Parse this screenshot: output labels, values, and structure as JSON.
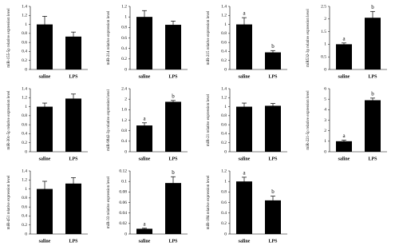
{
  "chart_data": [
    {
      "type": "bar",
      "y_label": "miR-155-5p relative expression level",
      "categories": [
        "saline",
        "LPS"
      ],
      "values": [
        1.0,
        0.73
      ],
      "errors": [
        0.18,
        0.1
      ],
      "ylim": [
        0,
        1.4
      ],
      "yticks": [
        0,
        0.2,
        0.4,
        0.6,
        0.8,
        1,
        1.2,
        1.4
      ],
      "color": "#000000"
    },
    {
      "type": "bar",
      "y_label": "miR-214 relative expression level",
      "categories": [
        "saline",
        "LPS"
      ],
      "values": [
        1.0,
        0.85
      ],
      "errors": [
        0.12,
        0.07
      ],
      "ylim": [
        0,
        1.2
      ],
      "yticks": [
        0,
        0.2,
        0.4,
        0.6,
        0.8,
        1,
        1.2
      ],
      "color": "#000000"
    },
    {
      "type": "bar",
      "y_label": "miR-215 relative expression level",
      "categories": [
        "saline",
        "LPS"
      ],
      "values": [
        1.0,
        0.38
      ],
      "errors": [
        0.15,
        0.04
      ],
      "letters": [
        "a",
        "b"
      ],
      "ylim": [
        0,
        1.4
      ],
      "yticks": [
        0,
        0.2,
        0.4,
        0.6,
        0.8,
        1,
        1.2,
        1.4
      ],
      "color": "#000000"
    },
    {
      "type": "bar",
      "y_label": "miR532-3p relative expression level",
      "categories": [
        "saline",
        "LPS"
      ],
      "values": [
        1.0,
        2.05
      ],
      "errors": [
        0.05,
        0.25
      ],
      "letters": [
        "a",
        "b"
      ],
      "ylim": [
        0,
        2.5
      ],
      "yticks": [
        0,
        0.5,
        1,
        1.5,
        2,
        2.5
      ],
      "color": "#000000"
    },
    {
      "type": "bar",
      "y_label": "miR-30c-5p relative expression level",
      "categories": [
        "saline",
        "LPS"
      ],
      "values": [
        1.0,
        1.18
      ],
      "errors": [
        0.08,
        0.1
      ],
      "ylim": [
        0,
        1.4
      ],
      "yticks": [
        0,
        0.2,
        0.4,
        0.6,
        0.8,
        1,
        1.2,
        1.4
      ],
      "color": "#000000"
    },
    {
      "type": "bar",
      "y_label": "miR-9842-3p relative expression level",
      "categories": [
        "saline",
        "LPS"
      ],
      "values": [
        1.0,
        1.9
      ],
      "errors": [
        0.1,
        0.05
      ],
      "letters": [
        "a",
        "b"
      ],
      "ylim": [
        0,
        2.4
      ],
      "yticks": [
        0,
        0.4,
        0.8,
        1.2,
        1.6,
        2,
        2.4
      ],
      "color": "#000000"
    },
    {
      "type": "bar",
      "y_label": "miR-21 relative expression level",
      "categories": [
        "saline",
        "LPS"
      ],
      "values": [
        1.0,
        1.02
      ],
      "errors": [
        0.08,
        0.05
      ],
      "ylim": [
        0,
        1.4
      ],
      "yticks": [
        0,
        0.2,
        0.4,
        0.6,
        0.8,
        1,
        1.2,
        1.4
      ],
      "color": "#000000"
    },
    {
      "type": "bar",
      "y_label": "miR-221-5p relative expression level",
      "categories": [
        "saline",
        "LPS"
      ],
      "values": [
        1.0,
        4.9
      ],
      "errors": [
        0.1,
        0.2
      ],
      "letters": [
        "a",
        "b"
      ],
      "ylim": [
        0,
        6
      ],
      "yticks": [
        0,
        1,
        2,
        3,
        4,
        5,
        6
      ],
      "color": "#000000"
    },
    {
      "type": "bar",
      "y_label": "miR-451 relative expression level",
      "categories": [
        "saline",
        "LPS"
      ],
      "values": [
        1.0,
        1.12
      ],
      "errors": [
        0.17,
        0.13
      ],
      "ylim": [
        0,
        1.4
      ],
      "yticks": [
        0,
        0.2,
        0.4,
        0.6,
        0.8,
        1,
        1.2,
        1.4
      ],
      "color": "#000000"
    },
    {
      "type": "bar",
      "y_label": "miR-33 relative expression level",
      "categories": [
        "saline",
        "LPS"
      ],
      "values": [
        0.01,
        0.097
      ],
      "errors": [
        0.001,
        0.012
      ],
      "letters": [
        "a",
        "b"
      ],
      "ylim": [
        0,
        0.12
      ],
      "yticks": [
        0,
        0.02,
        0.04,
        0.06,
        0.08,
        0.1,
        0.12
      ],
      "color": "#000000"
    },
    {
      "type": "bar",
      "y_label": "miR-184 relative expression level",
      "categories": [
        "saline",
        "LPS"
      ],
      "values": [
        1.0,
        0.64
      ],
      "errors": [
        0.08,
        0.08
      ],
      "letters": [
        "a",
        "b"
      ],
      "ylim": [
        0,
        1.2
      ],
      "yticks": [
        0,
        0.2,
        0.4,
        0.6,
        0.8,
        1,
        1.2
      ],
      "color": "#000000"
    }
  ]
}
